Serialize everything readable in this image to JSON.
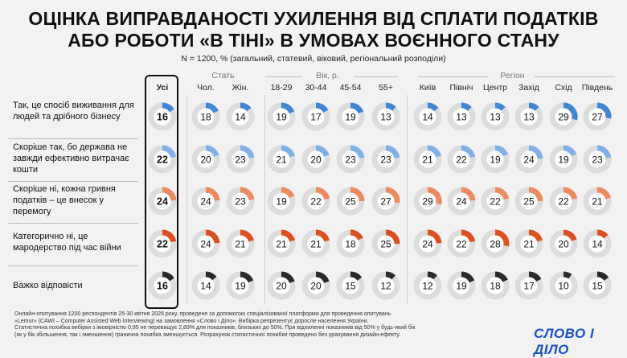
{
  "title_line1": "ОЦІНКА ВИПРАВДАНОСТІ УХИЛЕННЯ ВІД СПЛАТИ ПОДАТКІВ",
  "title_line2": "АБО РОБОТИ «В ТІНІ» В УМОВАХ ВОЄННОГО СТАНУ",
  "subtitle": "N = 1200, % (загальний, статевий, віковий, регіональний розподіли)",
  "groups": {
    "sex": "Стать",
    "age": "Вік, р.",
    "region": "Регіон"
  },
  "footnote": [
    "Онлайн-опитування 1200 респондентів 25-30 квітня 2026 року, проведене за допомогою спеціалізованої платформи для проведення опитувань",
    "«Lemur» (CAWI – Computer Assisted Web Interviewing) на замовлення «Слово і Діло». Вибірка репрезентує доросле населення України.",
    "Статистична похибка вибірки з імовірністю 0,95 не перевищує 2,89% для показників, близьких до 50%. При відхиленні показників від 50% у будь-який бік",
    "(як у бік збільшення, так і зменшення) гранична похибка зменшується. Розрахунок статистичної похибки проведено без урахування дизайн-ефекту."
  ],
  "logo": "СЛОВО І ДІЛО",
  "chart_data": {
    "type": "table",
    "columns": [
      "Усі",
      "Чол.",
      "Жін.",
      "18-29",
      "30-44",
      "45-54",
      "55+",
      "Київ",
      "Північ",
      "Центр",
      "Захід",
      "Схід",
      "Південь"
    ],
    "rows": [
      {
        "label": "Так, це спосіб виживання для людей та дрібного бізнесу",
        "color": "#3f86d8",
        "values": [
          16,
          18,
          14,
          19,
          17,
          19,
          13,
          14,
          13,
          13,
          13,
          29,
          27
        ]
      },
      {
        "label": "Скоріше так, бо держава не завжди ефективно витрачає кошти",
        "color": "#7fb1e8",
        "values": [
          22,
          20,
          23,
          21,
          20,
          23,
          23,
          21,
          22,
          19,
          24,
          19,
          23
        ]
      },
      {
        "label": "Скоріше ні, кожна гривня податків – це внесок у перемогу",
        "color": "#ef8a5e",
        "values": [
          24,
          24,
          23,
          19,
          22,
          25,
          27,
          29,
          24,
          22,
          25,
          22,
          21
        ]
      },
      {
        "label": "Категорично ні, це мародерство під час війни",
        "color": "#e04e1e",
        "values": [
          22,
          24,
          21,
          21,
          21,
          18,
          25,
          24,
          22,
          28,
          21,
          20,
          14
        ]
      },
      {
        "label": "Важко відповісти",
        "color": "#2a2a2a",
        "values": [
          16,
          14,
          19,
          20,
          20,
          15,
          12,
          12,
          19,
          18,
          17,
          10,
          15
        ]
      }
    ]
  }
}
